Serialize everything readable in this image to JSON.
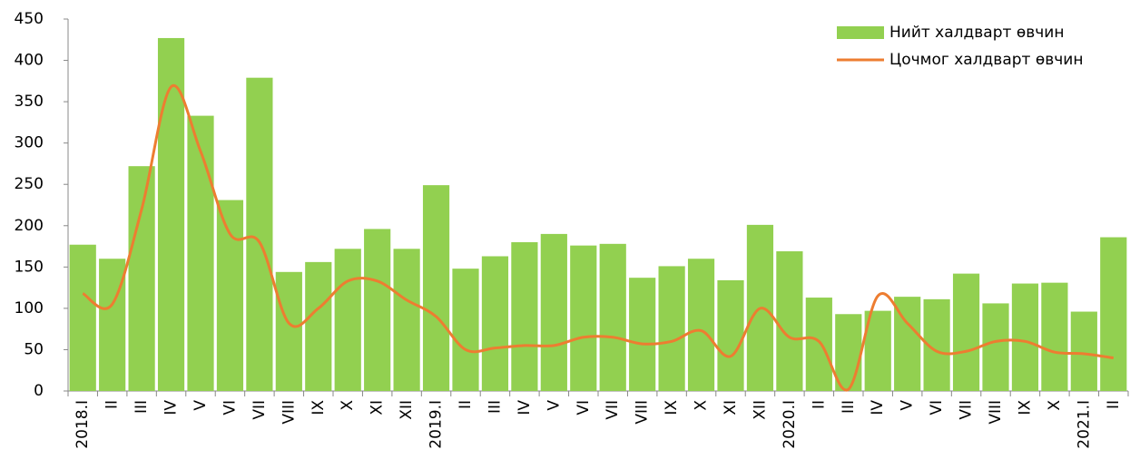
{
  "chart_data": {
    "type": "bar_line",
    "categories": [
      "2018.I",
      "II",
      "III",
      "IV",
      "V",
      "VI",
      "VII",
      "VIII",
      "IX",
      "X",
      "XI",
      "XII",
      "2019.I",
      "II",
      "III",
      "IV",
      "V",
      "VI",
      "VII",
      "VIII",
      "IX",
      "X",
      "XI",
      "XII",
      "2020.I",
      "II",
      "III",
      "IV",
      "V",
      "VI",
      "VII",
      "VIII",
      "IX",
      "X",
      "2021.I",
      "II"
    ],
    "series": [
      {
        "name": "Нийт халдварт өвчин",
        "type": "bar",
        "color": "#92d050",
        "values": [
          177,
          160,
          272,
          427,
          333,
          231,
          379,
          144,
          156,
          172,
          196,
          172,
          249,
          148,
          163,
          180,
          190,
          176,
          178,
          137,
          151,
          160,
          134,
          201,
          169,
          113,
          93,
          97,
          114,
          111,
          142,
          106,
          130,
          131,
          96,
          186
        ]
      },
      {
        "name": "Цочмог халдварт өвчин",
        "type": "line",
        "color": "#ed7d31",
        "values": [
          118,
          105,
          220,
          368,
          290,
          190,
          180,
          82,
          100,
          133,
          133,
          110,
          90,
          50,
          52,
          55,
          55,
          65,
          65,
          57,
          60,
          73,
          42,
          100,
          65,
          60,
          2,
          115,
          82,
          48,
          48,
          60,
          60,
          47,
          45,
          40
        ]
      }
    ],
    "ylim": [
      0,
      450
    ],
    "yticks": [
      0,
      50,
      100,
      150,
      200,
      250,
      300,
      350,
      400,
      450
    ],
    "legend": "top-right"
  }
}
